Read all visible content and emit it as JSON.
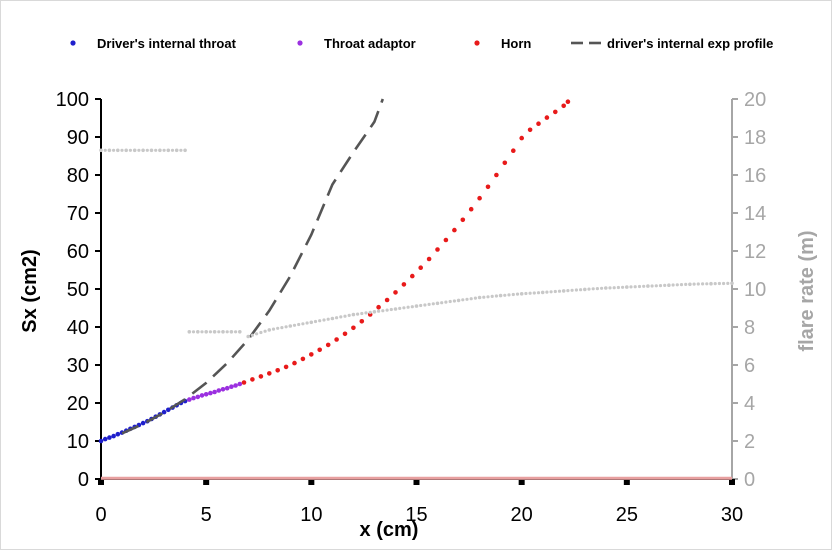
{
  "chart_data": {
    "type": "scatter",
    "title": "",
    "xlabel": "x (cm)",
    "ylabel": "Sx (cm2)",
    "y2label": "flare rate (m)",
    "xlim": [
      0,
      30
    ],
    "ylim": [
      0,
      100
    ],
    "y2lim": [
      0,
      20
    ],
    "x_ticks": [
      0,
      5,
      10,
      15,
      20,
      25,
      30
    ],
    "y_ticks": [
      0,
      10,
      20,
      30,
      40,
      50,
      60,
      70,
      80,
      90,
      100
    ],
    "y2_ticks": [
      0,
      2,
      4,
      6,
      8,
      10,
      12,
      14,
      16,
      18,
      20
    ],
    "grid": false,
    "legend_position": "top",
    "legend": [
      {
        "label": "Driver's internal throat",
        "marker": "dot",
        "color": "#1f1fcc"
      },
      {
        "label": "Throat adaptor",
        "marker": "dot",
        "color": "#9b30e0"
      },
      {
        "label": "Horn",
        "marker": "dot",
        "color": "#e81a1a"
      },
      {
        "label": "driver's internal exp profile",
        "marker": "dash",
        "color": "#555555"
      }
    ],
    "series": [
      {
        "name": "Driver's internal throat",
        "axis": "left",
        "color": "#1f1fcc",
        "x": [
          0,
          0.2,
          0.4,
          0.6,
          0.8,
          1.0,
          1.2,
          1.4,
          1.6,
          1.8,
          2.0,
          2.2,
          2.4,
          2.6,
          2.8,
          3.0,
          3.2,
          3.4,
          3.6,
          3.8,
          4.0
        ],
        "y": [
          10.0,
          10.5,
          10.9,
          11.3,
          11.8,
          12.2,
          12.7,
          13.2,
          13.7,
          14.2,
          14.7,
          15.2,
          15.8,
          16.4,
          17.0,
          17.6,
          18.2,
          18.8,
          19.4,
          20.0,
          20.5
        ]
      },
      {
        "name": "Throat adaptor",
        "axis": "left",
        "color": "#9b30e0",
        "x": [
          4.2,
          4.4,
          4.6,
          4.8,
          5.0,
          5.2,
          5.4,
          5.6,
          5.8,
          6.0,
          6.2,
          6.4,
          6.6
        ],
        "y": [
          20.9,
          21.3,
          21.6,
          22.0,
          22.3,
          22.6,
          22.9,
          23.3,
          23.6,
          23.9,
          24.3,
          24.6,
          25.0
        ]
      },
      {
        "name": "Horn",
        "axis": "left",
        "color": "#e81a1a",
        "x": [
          6.8,
          7.2,
          7.6,
          8.0,
          8.4,
          8.8,
          9.2,
          9.6,
          10.0,
          10.4,
          10.8,
          11.2,
          11.6,
          12.0,
          12.4,
          12.8,
          13.2,
          13.6,
          14.0,
          14.4,
          14.8,
          15.2,
          15.6,
          16.0,
          16.4,
          16.8,
          17.2,
          17.6,
          18.0,
          18.4,
          18.8,
          19.2,
          19.6,
          20.0,
          20.4,
          20.8,
          21.2,
          21.6,
          22.0,
          22.2
        ],
        "y": [
          25.4,
          26.2,
          27.0,
          27.8,
          28.6,
          29.5,
          30.5,
          31.6,
          32.8,
          34.0,
          35.3,
          36.7,
          38.2,
          39.8,
          41.5,
          43.3,
          45.2,
          47.1,
          49.1,
          51.2,
          53.4,
          55.6,
          57.9,
          60.4,
          62.9,
          65.5,
          68.2,
          71.0,
          73.9,
          76.9,
          80.0,
          83.2,
          86.4,
          89.7,
          91.9,
          93.5,
          95.1,
          96.6,
          98.2,
          99.3
        ]
      },
      {
        "name": "driver's internal exp profile",
        "axis": "left",
        "color": "#555555",
        "style": "dash",
        "x": [
          1.0,
          2.0,
          3.0,
          4.0,
          5.0,
          6.0,
          7.0,
          8.0,
          9.0,
          10.0,
          11.0,
          12.0,
          13.0,
          13.4
        ],
        "y": [
          12.0,
          14.5,
          17.5,
          21.0,
          25.3,
          30.5,
          36.7,
          44.3,
          53.4,
          64.3,
          77.5,
          86.0,
          94.0,
          100.0
        ]
      },
      {
        "name": "flare rate",
        "axis": "right",
        "color": "#c8c8c8",
        "segments": [
          {
            "x": [
              0,
              0.4,
              0.8,
              1.2,
              1.6,
              2.0,
              2.4,
              2.8,
              3.2,
              3.6,
              4.0
            ],
            "y": [
              17.3,
              17.3,
              17.3,
              17.3,
              17.3,
              17.3,
              17.3,
              17.3,
              17.3,
              17.3,
              17.3
            ]
          },
          {
            "x": [
              4.2,
              4.6,
              5.0,
              5.4,
              5.8,
              6.2,
              6.6
            ],
            "y": [
              7.75,
              7.75,
              7.75,
              7.75,
              7.75,
              7.75,
              7.75
            ]
          },
          {
            "x": [
              7.0,
              8.0,
              9.0,
              10.0,
              11.0,
              12.0,
              13.0,
              14.0,
              15.0,
              16.0,
              17.0,
              18.0,
              19.0,
              20.0,
              21.0,
              22.0,
              23.0,
              24.0,
              25.0,
              26.0,
              27.0,
              28.0,
              29.0,
              30.0
            ],
            "y": [
              7.5,
              7.85,
              8.05,
              8.25,
              8.45,
              8.65,
              8.8,
              8.95,
              9.1,
              9.25,
              9.4,
              9.55,
              9.65,
              9.75,
              9.82,
              9.9,
              9.98,
              10.05,
              10.1,
              10.15,
              10.2,
              10.25,
              10.28,
              10.3
            ]
          }
        ]
      },
      {
        "name": "baseline",
        "axis": "left",
        "color": "#e8a0a0",
        "x": [
          0,
          30
        ],
        "y": [
          0.2,
          0.2
        ]
      }
    ]
  }
}
